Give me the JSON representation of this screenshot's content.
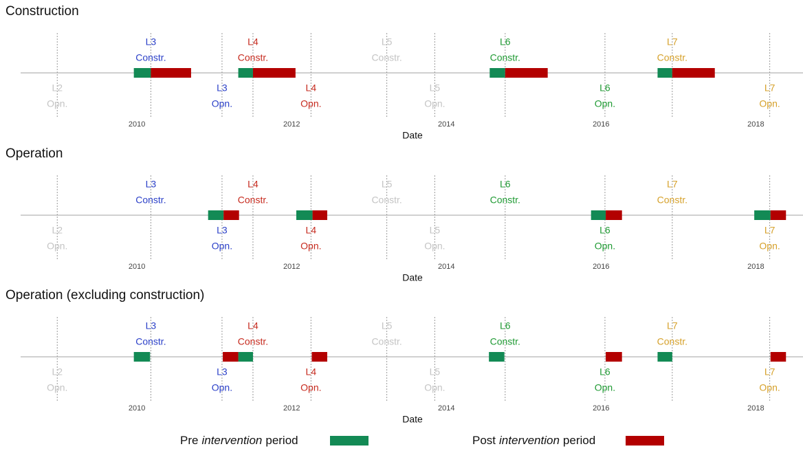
{
  "chart_data": [
    {
      "type": "timeline",
      "title": "Construction",
      "xlabel": "Date",
      "xlim": [
        2008.23,
        2018.61
      ],
      "xticks": [
        2010,
        2012,
        2014,
        2016,
        2018
      ],
      "events": [
        {
          "label": "L2",
          "kind": "Opn.",
          "x": 2008.97,
          "color": "#c4c4c4",
          "position": "below"
        },
        {
          "label": "L3",
          "kind": "Constr.",
          "x": 2010.18,
          "color": "#2a3fc8",
          "position": "above"
        },
        {
          "label": "L3",
          "kind": "Opn.",
          "x": 2011.1,
          "color": "#2a3fc8",
          "position": "below"
        },
        {
          "label": "L4",
          "kind": "Constr.",
          "x": 2011.5,
          "color": "#c62a1e",
          "position": "above"
        },
        {
          "label": "L4",
          "kind": "Opn.",
          "x": 2012.25,
          "color": "#c62a1e",
          "position": "below"
        },
        {
          "label": "L5",
          "kind": "Constr.",
          "x": 2013.23,
          "color": "#c4c4c4",
          "position": "above"
        },
        {
          "label": "L5",
          "kind": "Opn.",
          "x": 2013.85,
          "color": "#c4c4c4",
          "position": "below"
        },
        {
          "label": "L6",
          "kind": "Constr.",
          "x": 2014.76,
          "color": "#1f9a33",
          "position": "above"
        },
        {
          "label": "L6",
          "kind": "Opn.",
          "x": 2016.05,
          "color": "#1f9a33",
          "position": "below"
        },
        {
          "label": "L7",
          "kind": "Constr.",
          "x": 2016.92,
          "color": "#d6a12b",
          "position": "above"
        },
        {
          "label": "L7",
          "kind": "Opn.",
          "x": 2018.18,
          "color": "#d6a12b",
          "position": "below"
        }
      ],
      "series": [
        {
          "values": [
            [
              2009.96,
              2010.18
            ],
            [
              2011.31,
              2011.5
            ],
            [
              2014.56,
              2014.76
            ],
            [
              2016.73,
              2016.92
            ]
          ]
        },
        {
          "values": [
            [
              2010.18,
              2010.7
            ],
            [
              2011.5,
              2012.05
            ],
            [
              2014.76,
              2015.31
            ],
            [
              2016.92,
              2017.47
            ]
          ]
        }
      ]
    },
    {
      "type": "timeline",
      "title": "Operation",
      "xlabel": "Date",
      "xlim": [
        2008.23,
        2018.61
      ],
      "xticks": [
        2010,
        2012,
        2014,
        2016,
        2018
      ],
      "events": [
        {
          "label": "L2",
          "kind": "Opn.",
          "x": 2008.97,
          "color": "#c4c4c4",
          "position": "below"
        },
        {
          "label": "L3",
          "kind": "Constr.",
          "x": 2010.18,
          "color": "#2a3fc8",
          "position": "above"
        },
        {
          "label": "L3",
          "kind": "Opn.",
          "x": 2011.1,
          "color": "#2a3fc8",
          "position": "below"
        },
        {
          "label": "L4",
          "kind": "Constr.",
          "x": 2011.5,
          "color": "#c62a1e",
          "position": "above"
        },
        {
          "label": "L4",
          "kind": "Opn.",
          "x": 2012.25,
          "color": "#c62a1e",
          "position": "below"
        },
        {
          "label": "L5",
          "kind": "Constr.",
          "x": 2013.23,
          "color": "#c4c4c4",
          "position": "above"
        },
        {
          "label": "L5",
          "kind": "Opn.",
          "x": 2013.85,
          "color": "#c4c4c4",
          "position": "below"
        },
        {
          "label": "L6",
          "kind": "Constr.",
          "x": 2014.76,
          "color": "#1f9a33",
          "position": "above"
        },
        {
          "label": "L6",
          "kind": "Opn.",
          "x": 2016.05,
          "color": "#1f9a33",
          "position": "below"
        },
        {
          "label": "L7",
          "kind": "Constr.",
          "x": 2016.92,
          "color": "#d6a12b",
          "position": "above"
        },
        {
          "label": "L7",
          "kind": "Opn.",
          "x": 2018.18,
          "color": "#d6a12b",
          "position": "below"
        }
      ],
      "series": [
        {
          "values": [
            [
              2010.92,
              2011.12
            ],
            [
              2012.06,
              2012.27
            ],
            [
              2015.87,
              2016.06
            ],
            [
              2017.98,
              2018.19
            ]
          ]
        },
        {
          "values": [
            [
              2011.12,
              2011.32
            ],
            [
              2012.27,
              2012.46
            ],
            [
              2016.06,
              2016.27
            ],
            [
              2018.19,
              2018.39
            ]
          ]
        }
      ]
    },
    {
      "type": "timeline",
      "title": "Operation (excluding construction)",
      "xlabel": "Date",
      "xlim": [
        2008.23,
        2018.61
      ],
      "xticks": [
        2010,
        2012,
        2014,
        2016,
        2018
      ],
      "events": [
        {
          "label": "L2",
          "kind": "Opn.",
          "x": 2008.97,
          "color": "#c4c4c4",
          "position": "below"
        },
        {
          "label": "L3",
          "kind": "Constr.",
          "x": 2010.18,
          "color": "#2a3fc8",
          "position": "above"
        },
        {
          "label": "L3",
          "kind": "Opn.",
          "x": 2011.1,
          "color": "#2a3fc8",
          "position": "below"
        },
        {
          "label": "L4",
          "kind": "Constr.",
          "x": 2011.5,
          "color": "#c62a1e",
          "position": "above"
        },
        {
          "label": "L4",
          "kind": "Opn.",
          "x": 2012.25,
          "color": "#c62a1e",
          "position": "below"
        },
        {
          "label": "L5",
          "kind": "Constr.",
          "x": 2013.23,
          "color": "#c4c4c4",
          "position": "above"
        },
        {
          "label": "L5",
          "kind": "Opn.",
          "x": 2013.85,
          "color": "#c4c4c4",
          "position": "below"
        },
        {
          "label": "L6",
          "kind": "Constr.",
          "x": 2014.76,
          "color": "#1f9a33",
          "position": "above"
        },
        {
          "label": "L6",
          "kind": "Opn.",
          "x": 2016.05,
          "color": "#1f9a33",
          "position": "below"
        },
        {
          "label": "L7",
          "kind": "Constr.",
          "x": 2016.92,
          "color": "#d6a12b",
          "position": "above"
        },
        {
          "label": "L7",
          "kind": "Opn.",
          "x": 2018.18,
          "color": "#d6a12b",
          "position": "below"
        }
      ],
      "series": [
        {
          "values": [
            [
              2009.96,
              2010.17
            ],
            [
              2011.31,
              2011.5
            ],
            [
              2014.55,
              2014.75
            ],
            [
              2016.73,
              2016.92
            ]
          ]
        },
        {
          "values": [
            [
              2011.11,
              2011.31
            ],
            [
              2012.26,
              2012.46
            ],
            [
              2016.06,
              2016.27
            ],
            [
              2018.19,
              2018.39
            ]
          ]
        }
      ]
    }
  ],
  "legend": [
    {
      "name_parts": [
        "Pre",
        "intervention",
        "period"
      ],
      "color": "#138a55"
    },
    {
      "name_parts": [
        "Post",
        "intervention",
        "period"
      ],
      "color": "#b30000"
    }
  ]
}
